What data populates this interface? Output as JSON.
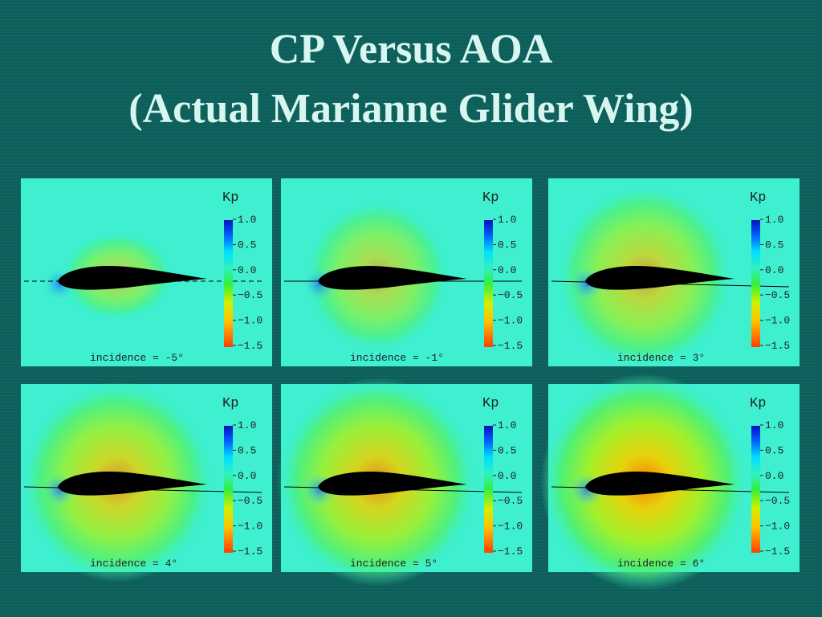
{
  "header": {
    "title_lines": [
      "CP Versus AOA",
      "(Actual Marianne Glider Wing)"
    ]
  },
  "colorbar": {
    "label": "Kp",
    "ticks": [
      "1.0",
      "0.5",
      "0.0",
      "−0.5",
      "−1.0",
      "−1.5"
    ]
  },
  "panels": [
    {
      "caption": "incidence = -5°"
    },
    {
      "caption": "incidence = -1°"
    },
    {
      "caption": "incidence =  3°"
    },
    {
      "caption": "incidence =  4°"
    },
    {
      "caption": "incidence =  5°"
    },
    {
      "caption": "incidence =  6°"
    }
  ]
}
